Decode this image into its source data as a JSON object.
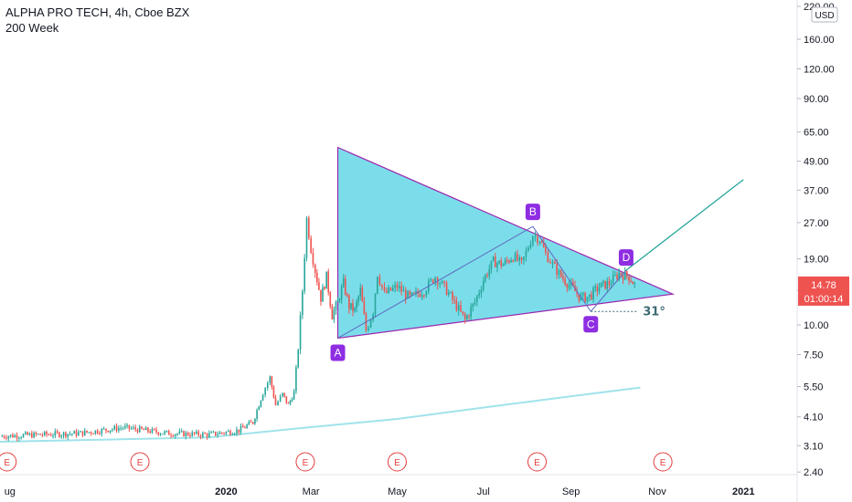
{
  "header": {
    "title": "ALPHA PRO TECH, 4h, Cboe BZX",
    "ma_label": "200 Week"
  },
  "currency": "USD",
  "price_badge": {
    "price": "14.78",
    "countdown": "01:00:14",
    "color": "#ef5350"
  },
  "colors": {
    "pattern_fill": "#4fd2e3",
    "pattern_stroke": "#9c27b0",
    "point_fill": "#8e2de2",
    "projection": "#26a69a",
    "ma_line": "#9fe3ea",
    "candle_up": "#26a69a",
    "candle_down": "#ef5350",
    "earnings": "#e3403f"
  },
  "chart_data": {
    "type": "line",
    "series": [
      {
        "type": "candlestick",
        "values": [
          {
            "x": "2019-07-25",
            "y": 3.4
          },
          {
            "x": "2019-09-20",
            "y": 3.5
          },
          {
            "x": "2019-10-20",
            "y": 3.7
          },
          {
            "x": "2019-11-20",
            "y": 3.5
          },
          {
            "x": "2019-12-20",
            "y": 3.45
          },
          {
            "x": "2020-01-10",
            "y": 3.6
          },
          {
            "x": "2020-01-20",
            "y": 3.9
          },
          {
            "x": "2020-01-27",
            "y": 5.2
          },
          {
            "x": "2020-02-01",
            "y": 6.0
          },
          {
            "x": "2020-02-05",
            "y": 4.6
          },
          {
            "x": "2020-02-10",
            "y": 5.1
          },
          {
            "x": "2020-02-14",
            "y": 4.6
          },
          {
            "x": "2020-02-18",
            "y": 5.2
          },
          {
            "x": "2020-02-21",
            "y": 8.0
          },
          {
            "x": "2020-02-24",
            "y": 14.0
          },
          {
            "x": "2020-02-27",
            "y": 28.0
          },
          {
            "x": "2020-03-01",
            "y": 21.0
          },
          {
            "x": "2020-03-04",
            "y": 17.0
          },
          {
            "x": "2020-03-08",
            "y": 13.0
          },
          {
            "x": "2020-03-12",
            "y": 16.0
          },
          {
            "x": "2020-03-16",
            "y": 11.0
          },
          {
            "x": "2020-03-20",
            "y": 12.5
          },
          {
            "x": "2020-03-24",
            "y": 15.0
          },
          {
            "x": "2020-03-28",
            "y": 12.0
          },
          {
            "x": "2020-04-01",
            "y": 11.5
          },
          {
            "x": "2020-04-05",
            "y": 14.0
          },
          {
            "x": "2020-04-09",
            "y": 9.5
          },
          {
            "x": "2020-04-14",
            "y": 11.5
          },
          {
            "x": "2020-04-17",
            "y": 16.5
          },
          {
            "x": "2020-04-22",
            "y": 13.5
          },
          {
            "x": "2020-05-01",
            "y": 14.5
          },
          {
            "x": "2020-05-10",
            "y": 13.0
          },
          {
            "x": "2020-05-20",
            "y": 14.0
          },
          {
            "x": "2020-05-28",
            "y": 16.0
          },
          {
            "x": "2020-06-05",
            "y": 14.0
          },
          {
            "x": "2020-06-12",
            "y": 12.0
          },
          {
            "x": "2020-06-18",
            "y": 10.5
          },
          {
            "x": "2020-06-25",
            "y": 12.5
          },
          {
            "x": "2020-07-01",
            "y": 15.5
          },
          {
            "x": "2020-07-08",
            "y": 18.5
          },
          {
            "x": "2020-07-15",
            "y": 18.0
          },
          {
            "x": "2020-07-22",
            "y": 19.5
          },
          {
            "x": "2020-07-28",
            "y": 18.0
          },
          {
            "x": "2020-08-05",
            "y": 24.0
          },
          {
            "x": "2020-08-10",
            "y": 23.0
          },
          {
            "x": "2020-08-14",
            "y": 20.0
          },
          {
            "x": "2020-08-19",
            "y": 18.0
          },
          {
            "x": "2020-08-25",
            "y": 16.0
          },
          {
            "x": "2020-09-01",
            "y": 14.5
          },
          {
            "x": "2020-09-08",
            "y": 13.0
          },
          {
            "x": "2020-09-14",
            "y": 13.2
          },
          {
            "x": "2020-09-21",
            "y": 14.5
          },
          {
            "x": "2020-09-28",
            "y": 15.0
          },
          {
            "x": "2020-10-05",
            "y": 16.5
          },
          {
            "x": "2020-10-12",
            "y": 16.0
          },
          {
            "x": "2020-10-16",
            "y": 14.78
          }
        ]
      },
      {
        "name": "200 Week",
        "values": [
          {
            "x": "2019-07-25",
            "y": 3.22
          },
          {
            "x": "2019-12-20",
            "y": 3.36
          },
          {
            "x": "2020-02-24",
            "y": 3.68
          },
          {
            "x": "2020-05-01",
            "y": 4.02
          },
          {
            "x": "2020-07-15",
            "y": 4.6
          },
          {
            "x": "2020-10-20",
            "y": 5.45
          }
        ]
      }
    ],
    "pattern_points": [
      {
        "label": "A",
        "x": "2020-03-20",
        "y": 8.8
      },
      {
        "label": "B",
        "x": "2020-08-05",
        "y": 26.0
      },
      {
        "label": "C",
        "x": "2020-09-15",
        "y": 11.4
      },
      {
        "label": "D",
        "x": "2020-10-10",
        "y": 17.0
      }
    ],
    "triangle": [
      {
        "x": "2020-03-20",
        "y": 56.0
      },
      {
        "x": "2020-11-12",
        "y": 13.5
      },
      {
        "x": "2020-03-20",
        "y": 8.8
      }
    ],
    "projection": [
      {
        "x": "2020-10-10",
        "y": 17.0
      },
      {
        "x": "2021-01-01",
        "y": 41.0
      }
    ],
    "angle_label": "31°",
    "earnings_markers": [
      "E",
      "E",
      "E",
      "E",
      "E",
      "E"
    ],
    "earnings_dates": [
      "2019-07-30",
      "2019-11-01",
      "2020-02-26",
      "2020-05-01",
      "2020-08-08",
      "2020-11-05"
    ],
    "x_ticks": [
      {
        "label": "ug",
        "x": "2019-08-01",
        "bold": false
      },
      {
        "label": "2020",
        "x": "2020-01-01",
        "bold": true
      },
      {
        "label": "Mar",
        "x": "2020-03-01",
        "bold": false
      },
      {
        "label": "May",
        "x": "2020-05-01",
        "bold": false
      },
      {
        "label": "Jul",
        "x": "2020-07-01",
        "bold": false
      },
      {
        "label": "Sep",
        "x": "2020-09-01",
        "bold": false
      },
      {
        "label": "Nov",
        "x": "2020-11-01",
        "bold": false
      },
      {
        "label": "2021",
        "x": "2021-01-01",
        "bold": true
      }
    ],
    "y_ticks": [
      "2.40",
      "3.10",
      "4.10",
      "5.50",
      "7.50",
      "10.00",
      "14.00",
      "19.00",
      "27.00",
      "37.00",
      "49.00",
      "65.00",
      "90.00",
      "120.00",
      "160.00",
      "220.00"
    ],
    "y_scale": "log",
    "ylim": [
      2.3,
      230
    ],
    "xlim": [
      "2019-07-25",
      "2021-02-08"
    ],
    "grid": false,
    "title": "ALPHA PRO TECH, 4h, Cboe BZX"
  }
}
